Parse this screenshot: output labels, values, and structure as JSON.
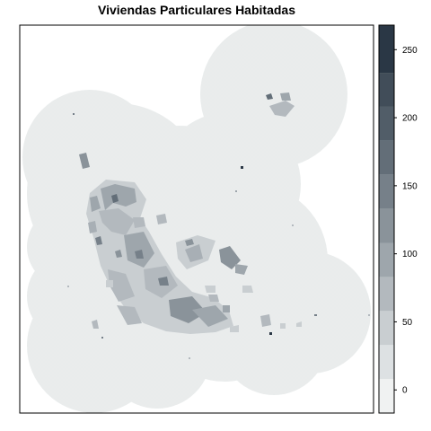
{
  "map": {
    "title": "Viviendas Particulares Habitadas"
  },
  "legend": {
    "min": -17,
    "max": 268,
    "ticks": [
      {
        "value": 0,
        "label": "0"
      },
      {
        "value": 50,
        "label": "50"
      },
      {
        "value": 100,
        "label": "100"
      },
      {
        "value": 150,
        "label": "150"
      },
      {
        "value": 200,
        "label": "200"
      },
      {
        "value": 250,
        "label": "250"
      }
    ],
    "bins": [
      {
        "from": -17,
        "to": 8,
        "color": "#f0f2f2"
      },
      {
        "from": 8,
        "to": 33,
        "color": "#dde1e3"
      },
      {
        "from": 33,
        "to": 58,
        "color": "#c9ced1"
      },
      {
        "from": 58,
        "to": 83,
        "color": "#b3b9be"
      },
      {
        "from": 83,
        "to": 108,
        "color": "#9ea6ac"
      },
      {
        "from": 108,
        "to": 133,
        "color": "#8a939a"
      },
      {
        "from": 133,
        "to": 158,
        "color": "#768089"
      },
      {
        "from": 158,
        "to": 183,
        "color": "#636e78"
      },
      {
        "from": 183,
        "to": 208,
        "color": "#515d68"
      },
      {
        "from": 208,
        "to": 233,
        "color": "#414d59"
      },
      {
        "from": 233,
        "to": 268,
        "color": "#2a3745"
      }
    ]
  },
  "colors": {
    "background_region": "#e9ecec",
    "frame": "#000000"
  }
}
